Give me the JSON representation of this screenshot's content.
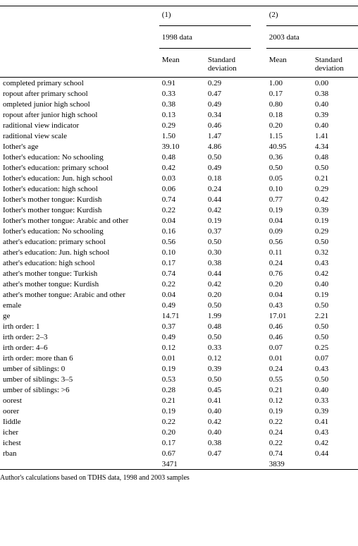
{
  "headers": {
    "col1_num": "(1)",
    "col2_num": "(2)",
    "col1_year": "1998 data",
    "col2_year": "2003 data",
    "mean": "Mean",
    "sd": "Standard deviation"
  },
  "rows": [
    {
      "label": "completed primary school",
      "m1": "0.91",
      "s1": "0.29",
      "m2": "1.00",
      "s2": "0.00"
    },
    {
      "label": "ropout after primary school",
      "m1": "0.33",
      "s1": "0.47",
      "m2": "0.17",
      "s2": "0.38"
    },
    {
      "label": "ompleted junior high school",
      "m1": "0.38",
      "s1": "0.49",
      "m2": "0.80",
      "s2": "0.40"
    },
    {
      "label": "ropout after junior high school",
      "m1": "0.13",
      "s1": "0.34",
      "m2": "0.18",
      "s2": "0.39"
    },
    {
      "label": "raditional view indicator",
      "m1": "0.29",
      "s1": "0.46",
      "m2": "0.20",
      "s2": "0.40"
    },
    {
      "label": "raditional view scale",
      "m1": "1.50",
      "s1": "1.47",
      "m2": "1.15",
      "s2": "1.41"
    },
    {
      "label": "Iother's age",
      "m1": "39.10",
      "s1": "4.86",
      "m2": "40.95",
      "s2": "4.34"
    },
    {
      "label": "Iother's education: No schooling",
      "m1": "0.48",
      "s1": "0.50",
      "m2": "0.36",
      "s2": "0.48"
    },
    {
      "label": "Iother's education: primary school",
      "m1": "0.42",
      "s1": "0.49",
      "m2": "0.50",
      "s2": "0.50"
    },
    {
      "label": "Iother's education: Jun. high school",
      "m1": "0.03",
      "s1": "0.18",
      "m2": "0.05",
      "s2": "0.21"
    },
    {
      "label": "Iother's education: high school",
      "m1": "0.06",
      "s1": "0.24",
      "m2": "0.10",
      "s2": "0.29"
    },
    {
      "label": "Iother's mother tongue: Kurdish",
      "m1": "0.74",
      "s1": "0.44",
      "m2": "0.77",
      "s2": "0.42"
    },
    {
      "label": "Iother's mother tongue: Kurdish",
      "m1": "0.22",
      "s1": "0.42",
      "m2": "0.19",
      "s2": "0.39"
    },
    {
      "label": "Iother's mother tongue: Arabic and other",
      "m1": "0.04",
      "s1": "0.19",
      "m2": "0.04",
      "s2": "0.19"
    },
    {
      "label": "Iother's education: No schooling",
      "m1": "0.16",
      "s1": "0.37",
      "m2": "0.09",
      "s2": "0.29"
    },
    {
      "label": "ather's education: primary school",
      "m1": "0.56",
      "s1": "0.50",
      "m2": "0.56",
      "s2": "0.50"
    },
    {
      "label": "ather's education: Jun. high school",
      "m1": "0.10",
      "s1": "0.30",
      "m2": "0.11",
      "s2": "0.32"
    },
    {
      "label": "ather's education: high school",
      "m1": "0.17",
      "s1": "0.38",
      "m2": "0.24",
      "s2": "0.43"
    },
    {
      "label": "ather's mother tongue: Turkish",
      "m1": "0.74",
      "s1": "0.44",
      "m2": "0.76",
      "s2": "0.42"
    },
    {
      "label": "ather's mother tongue: Kurdish",
      "m1": "0.22",
      "s1": "0.42",
      "m2": "0.20",
      "s2": "0.40"
    },
    {
      "label": "ather's mother tongue: Arabic and other",
      "m1": "0.04",
      "s1": "0.20",
      "m2": "0.04",
      "s2": "0.19"
    },
    {
      "label": "emale",
      "m1": "0.49",
      "s1": "0.50",
      "m2": "0.43",
      "s2": "0.50"
    },
    {
      "label": "ge",
      "m1": "14.71",
      "s1": "1.99",
      "m2": "17.01",
      "s2": "2.21"
    },
    {
      "label": "irth order: 1",
      "m1": "0.37",
      "s1": "0.48",
      "m2": "0.46",
      "s2": "0.50"
    },
    {
      "label": "irth order: 2–3",
      "m1": "0.49",
      "s1": "0.50",
      "m2": "0.46",
      "s2": "0.50"
    },
    {
      "label": "irth order: 4–6",
      "m1": "0.12",
      "s1": "0.33",
      "m2": "0.07",
      "s2": "0.25"
    },
    {
      "label": "irth order: more than 6",
      "m1": "0.01",
      "s1": "0.12",
      "m2": "0.01",
      "s2": "0.07"
    },
    {
      "label": "umber of siblings: 0",
      "m1": "0.19",
      "s1": "0.39",
      "m2": "0.24",
      "s2": "0.43"
    },
    {
      "label": "umber of siblings: 3–5",
      "m1": "0.53",
      "s1": "0.50",
      "m2": "0.55",
      "s2": "0.50"
    },
    {
      "label": "umber of siblings: >6",
      "m1": "0.28",
      "s1": "0.45",
      "m2": "0.21",
      "s2": "0.40"
    },
    {
      "label": "oorest",
      "m1": "0.21",
      "s1": "0.41",
      "m2": "0.12",
      "s2": "0.33"
    },
    {
      "label": "oorer",
      "m1": "0.19",
      "s1": "0.40",
      "m2": "0.19",
      "s2": "0.39"
    },
    {
      "label": "Iiddle",
      "m1": "0.22",
      "s1": "0.42",
      "m2": "0.22",
      "s2": "0.41"
    },
    {
      "label": "icher",
      "m1": "0.20",
      "s1": "0.40",
      "m2": "0.24",
      "s2": "0.43"
    },
    {
      "label": "ichest",
      "m1": "0.17",
      "s1": "0.38",
      "m2": "0.22",
      "s2": "0.42"
    },
    {
      "label": "rban",
      "m1": "0.67",
      "s1": "0.47",
      "m2": "0.74",
      "s2": "0.44"
    },
    {
      "label": "",
      "m1": "3471",
      "s1": "",
      "m2": "3839",
      "s2": ""
    }
  ],
  "footnote": "Author's calculations based on TDHS data, 1998 and 2003 samples"
}
